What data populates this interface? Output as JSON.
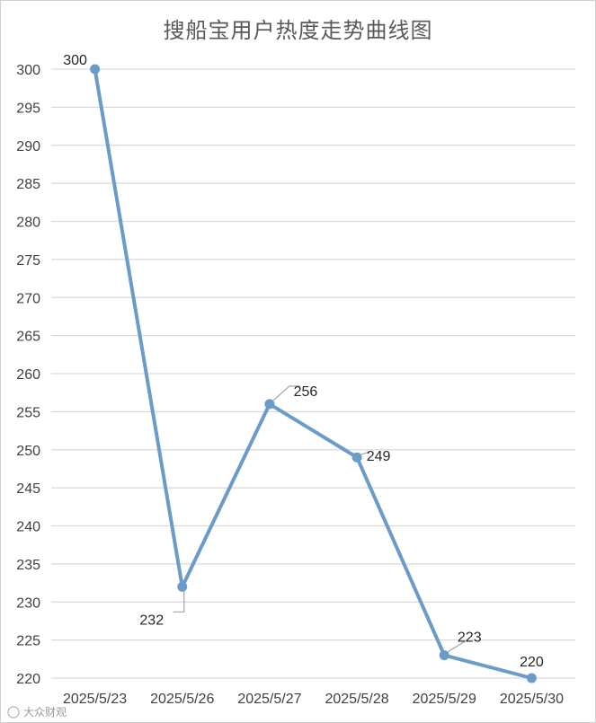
{
  "chart_data": {
    "type": "line",
    "title": "搜船宝用户热度走势曲线图",
    "xlabel": "",
    "ylabel": "",
    "categories": [
      "2025/5/23",
      "2025/5/26",
      "2025/5/27",
      "2025/5/28",
      "2025/5/29",
      "2025/5/30"
    ],
    "series": [
      {
        "values": [
          300,
          232,
          256,
          249,
          223,
          220
        ]
      }
    ],
    "data_labels": [
      "300",
      "232",
      "256",
      "249",
      "223",
      "220"
    ],
    "ylim": [
      220,
      300
    ],
    "y_ticks": [
      "220",
      "225",
      "230",
      "235",
      "240",
      "245",
      "250",
      "255",
      "260",
      "265",
      "270",
      "275",
      "280",
      "285",
      "290",
      "295",
      "300"
    ],
    "grid": true,
    "legend": "none",
    "line_color": "#6b9bc8",
    "watermark": "大众财观"
  }
}
